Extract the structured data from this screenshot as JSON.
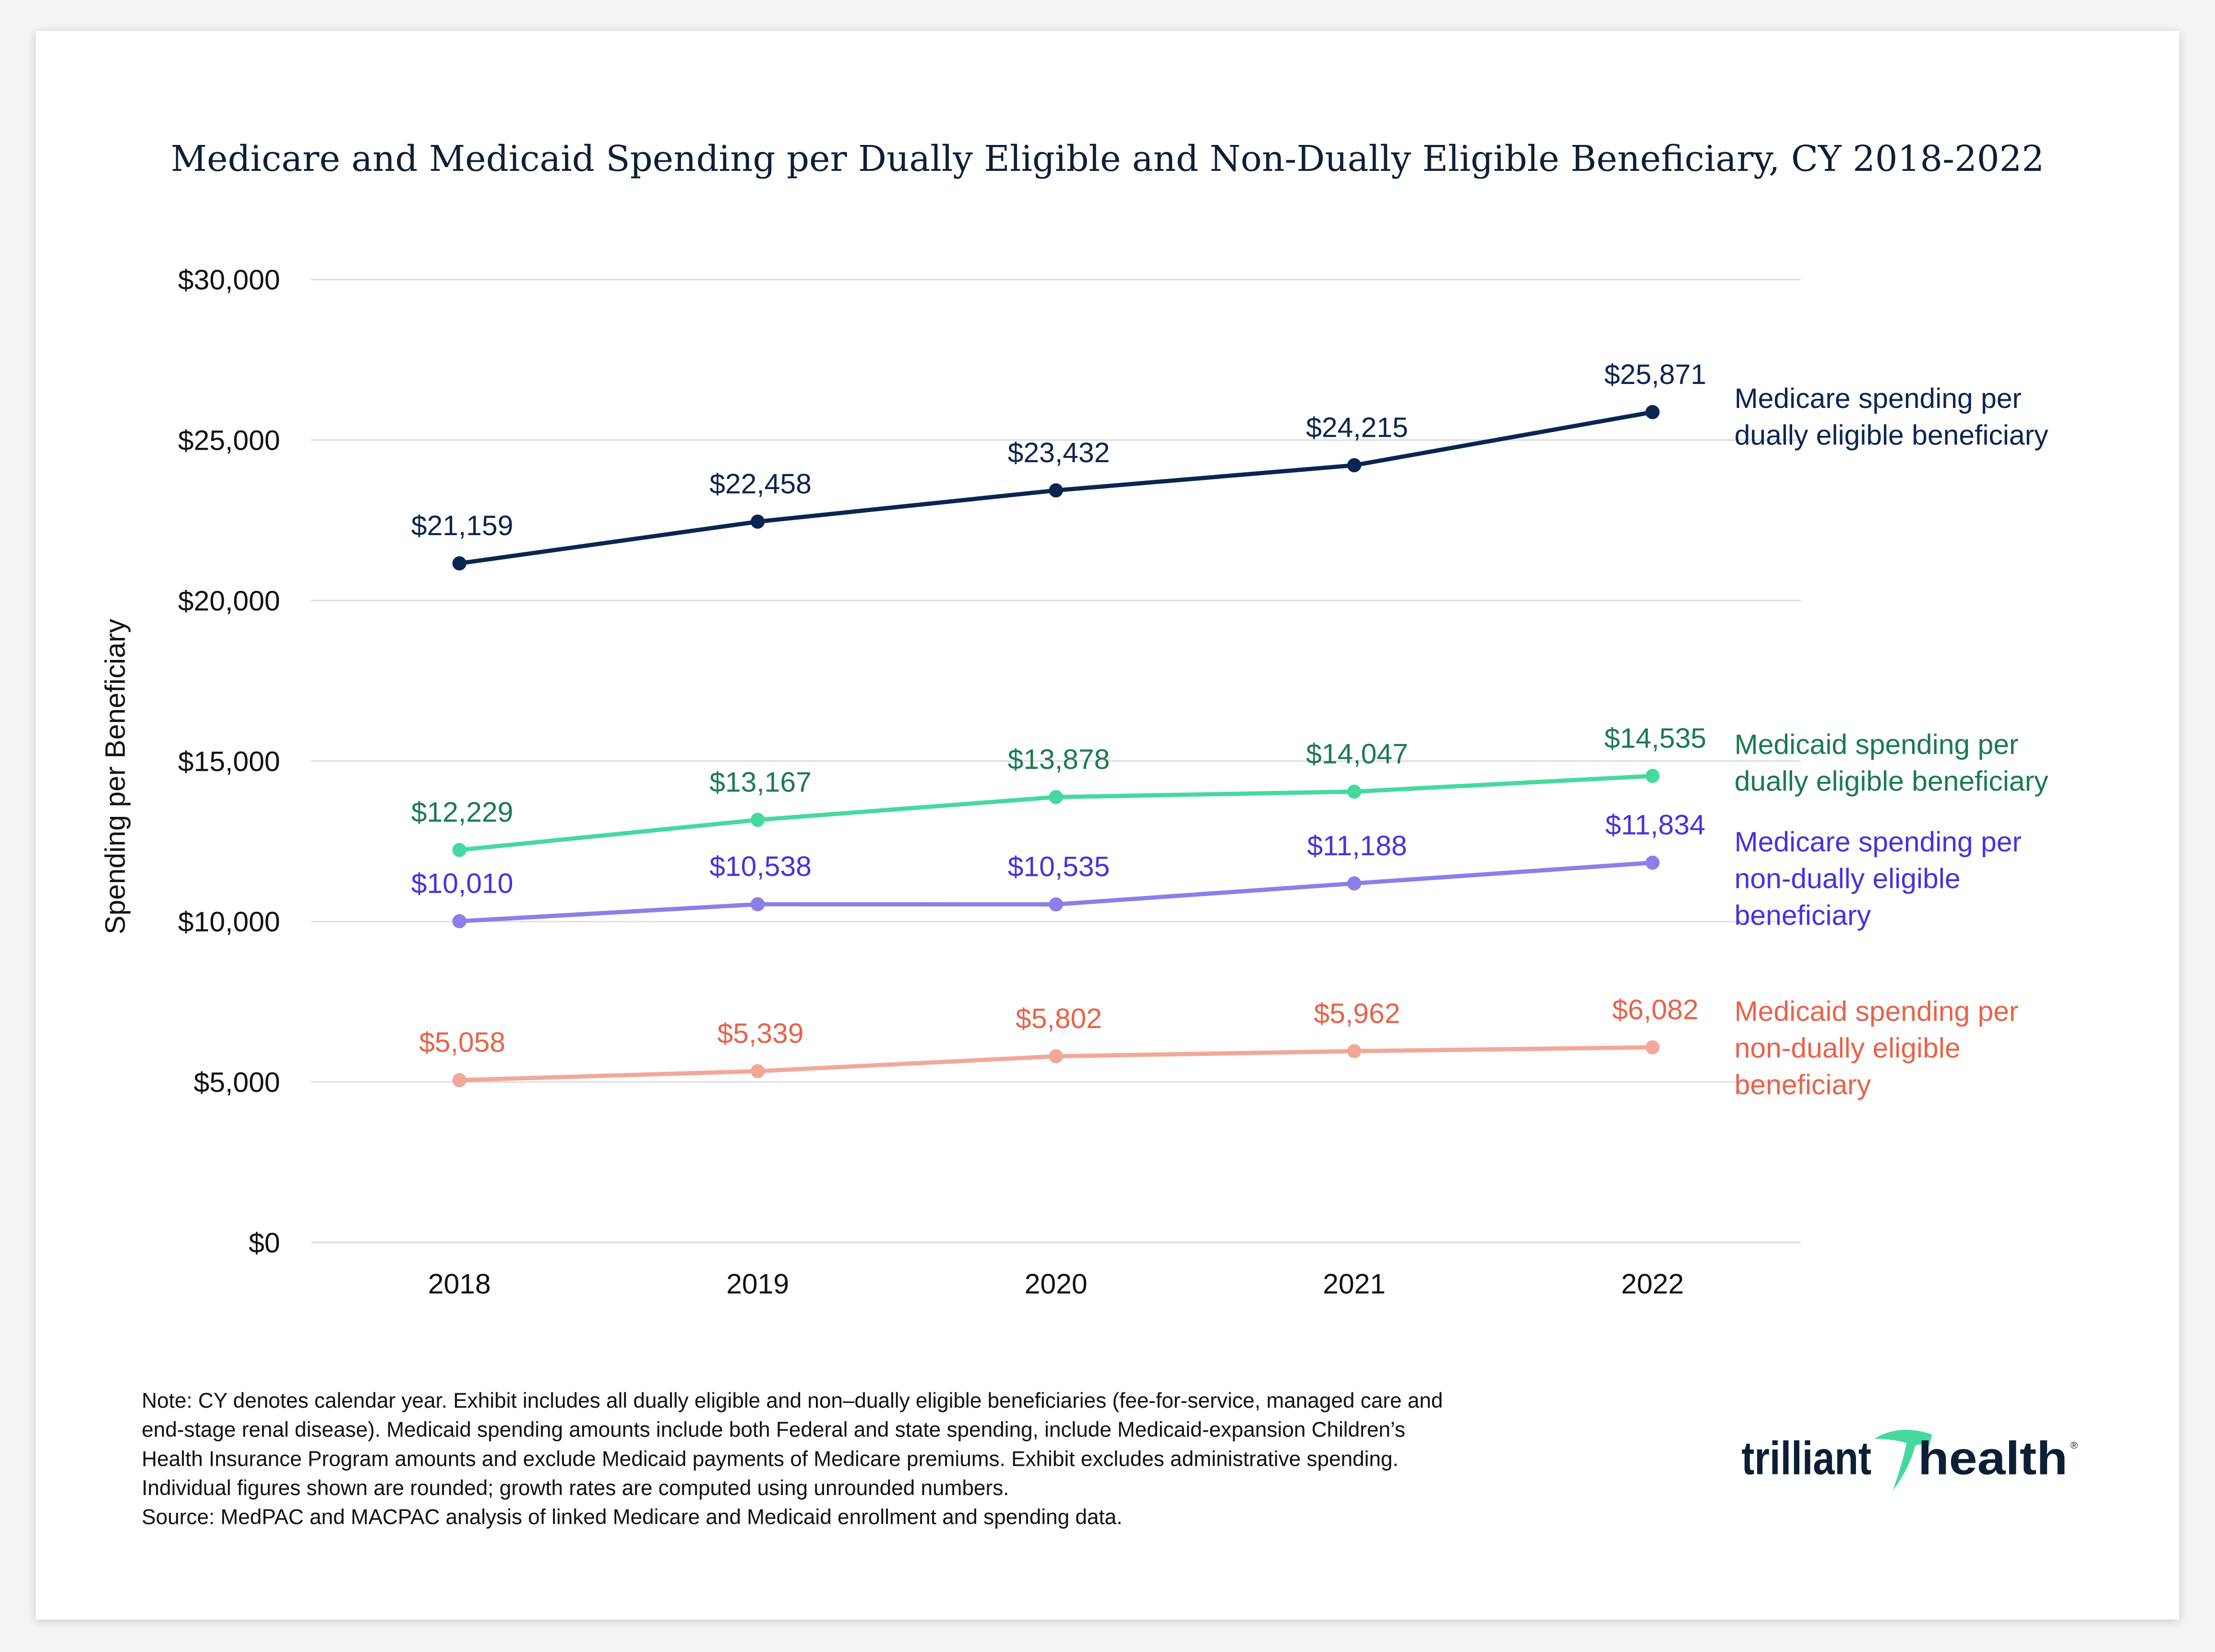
{
  "chart_data": {
    "type": "line",
    "title": "Medicare and Medicaid Spending per Dually Eligible and Non-Dually Eligible Beneficiary, CY 2018-2022",
    "xlabel": "",
    "ylabel": "Spending per Beneficiary",
    "categories": [
      "2018",
      "2019",
      "2020",
      "2021",
      "2022"
    ],
    "ylim": [
      0,
      30000
    ],
    "yticks": [
      0,
      5000,
      10000,
      15000,
      20000,
      25000,
      30000
    ],
    "ytick_labels": [
      "$0",
      "$5,000",
      "$10,000",
      "$15,000",
      "$20,000",
      "$25,000",
      "$30,000"
    ],
    "grid": "horizontal",
    "legend": "right (direct labels at line ends)",
    "series": [
      {
        "name": "Medicare spending per dually eligible beneficiary",
        "name_lines": [
          "Medicare spending per",
          "dually eligible beneficiary"
        ],
        "values": [
          21159,
          22458,
          23432,
          24215,
          25871
        ],
        "labels": [
          "$21,159",
          "$22,458",
          "$23,432",
          "$24,215",
          "$25,871"
        ],
        "line_color": "#0b2550",
        "text_color": "#0b2550"
      },
      {
        "name": "Medicaid spending per dually eligible beneficiary",
        "name_lines": [
          "Medicaid spending per",
          "dually eligible beneficiary"
        ],
        "values": [
          12229,
          13167,
          13878,
          14047,
          14535
        ],
        "labels": [
          "$12,229",
          "$13,167",
          "$13,878",
          "$14,047",
          "$14,535"
        ],
        "line_color": "#45d9a0",
        "text_color": "#1b7a52"
      },
      {
        "name": "Medicare spending per non-dually eligible beneficiary",
        "name_lines": [
          "Medicare spending per",
          "non-dually eligible",
          "beneficiary"
        ],
        "values": [
          10010,
          10538,
          10535,
          11188,
          11834
        ],
        "labels": [
          "$10,010",
          "$10,538",
          "$10,535",
          "$11,188",
          "$11,834"
        ],
        "line_color": "#8b7fe8",
        "text_color": "#4433e0"
      },
      {
        "name": "Medicaid spending per non-dually eligible beneficiary",
        "name_lines": [
          "Medicaid spending per",
          "non-dually eligible",
          "beneficiary"
        ],
        "values": [
          5058,
          5339,
          5802,
          5962,
          6082
        ],
        "labels": [
          "$5,058",
          "$5,339",
          "$5,802",
          "$5,962",
          "$6,082"
        ],
        "line_color": "#f2a899",
        "text_color": "#e8634a"
      }
    ]
  },
  "notes": [
    "Note: CY denotes calendar year. Exhibit includes all dually eligible and non–dually eligible beneficiaries (fee-for-service, managed care and",
    "end-stage renal disease). Medicaid spending amounts include both Federal and state spending, include Medicaid-expansion Children’s",
    "Health Insurance Program amounts and exclude Medicaid payments of Medicare premiums. Exhibit excludes administrative spending.",
    "Individual figures shown are rounded; growth rates are computed using unrounded numbers.",
    "Source: MedPAC and MACPAC analysis of linked Medicare and Medicaid enrollment and spending data."
  ],
  "logo": {
    "text": "trilliant health",
    "brand_dark": "#0d1f35",
    "brand_accent": "#45d9a0"
  }
}
